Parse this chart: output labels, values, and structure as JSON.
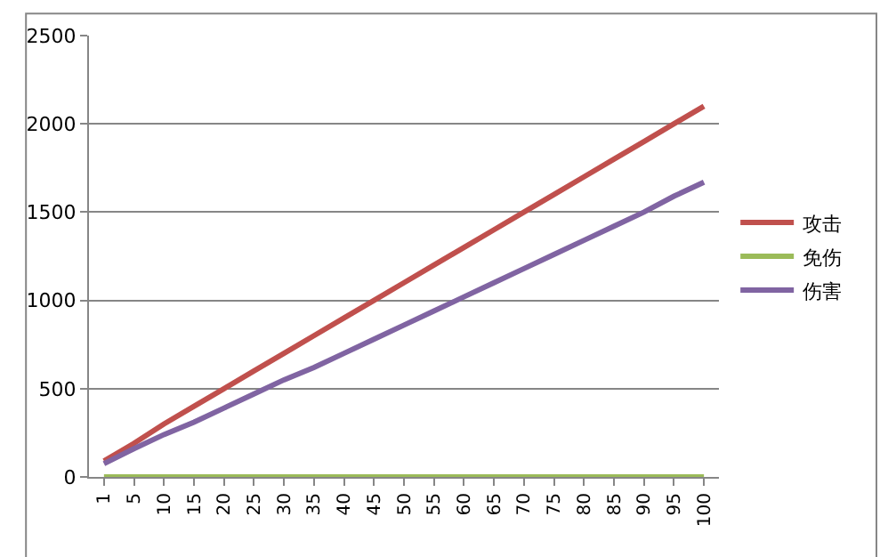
{
  "chart_data": {
    "type": "line",
    "categories": [
      "1",
      "5",
      "10",
      "15",
      "20",
      "25",
      "30",
      "35",
      "40",
      "45",
      "50",
      "55",
      "60",
      "65",
      "70",
      "75",
      "80",
      "85",
      "90",
      "95",
      "100"
    ],
    "series": [
      {
        "name": "攻击",
        "color": "#c0504d",
        "values": [
          90,
          190,
          300,
          400,
          500,
          600,
          700,
          800,
          900,
          1000,
          1100,
          1200,
          1300,
          1400,
          1500,
          1600,
          1700,
          1800,
          1900,
          2000,
          2100
        ]
      },
      {
        "name": "免伤",
        "color": "#9bbb59",
        "values": [
          0,
          0,
          0,
          0,
          0,
          0,
          0,
          0,
          0,
          0,
          0,
          0,
          0,
          0,
          0,
          0,
          0,
          0,
          0,
          0,
          0
        ]
      },
      {
        "name": "伤害",
        "color": "#8064a2",
        "values": [
          75,
          160,
          240,
          310,
          390,
          470,
          550,
          620,
          700,
          780,
          860,
          940,
          1020,
          1100,
          1180,
          1260,
          1340,
          1420,
          1500,
          1590,
          1670
        ]
      }
    ],
    "ylim": [
      0,
      2500
    ],
    "yticks": [
      0,
      500,
      1000,
      1500,
      2000,
      2500
    ],
    "grid": "y",
    "legend": "right"
  }
}
